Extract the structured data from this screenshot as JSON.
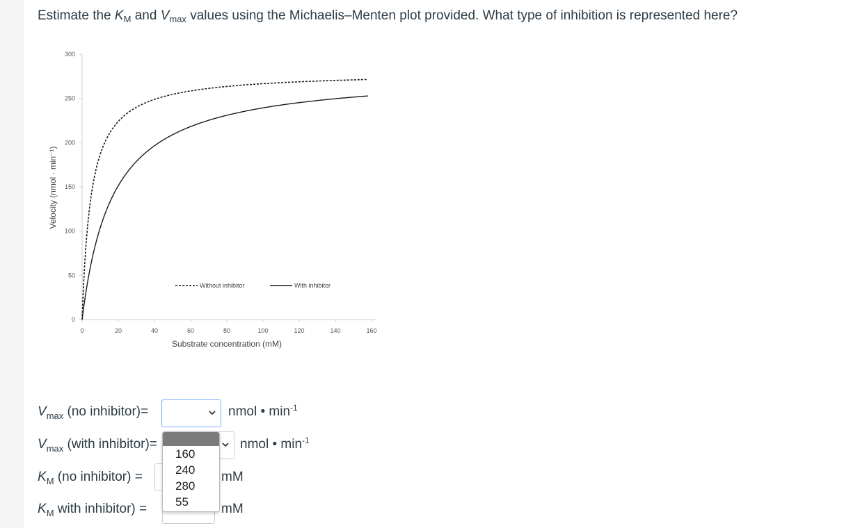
{
  "question": {
    "part1": "Estimate the ",
    "km_sym": "K",
    "km_sub": "M",
    "and": " and ",
    "vmax_sym": "V",
    "vmax_sub": "max",
    "part2": " values using the Michaelis–Menten plot provided. What type of inhibition is represented here?"
  },
  "chart_data": {
    "type": "line",
    "xlabel": "Substrate concentration (mM)",
    "ylabel": "Velocity (nmol · min⁻¹)",
    "xlim": [
      0,
      160
    ],
    "ylim": [
      0,
      300
    ],
    "x_ticks": [
      "0",
      "20",
      "40",
      "60",
      "80",
      "100",
      "120",
      "140",
      "160"
    ],
    "y_ticks": [
      "0",
      "50",
      "100",
      "150",
      "200",
      "250",
      "300"
    ],
    "legend_placement": "bottom-right inside",
    "series": [
      {
        "name": "Without inhibitor",
        "style": "dashed",
        "vmax": 280,
        "km": 5,
        "x": [
          0,
          2,
          5,
          10,
          20,
          40,
          60,
          80,
          100,
          120,
          140,
          158
        ],
        "y": [
          0,
          80,
          140,
          187,
          224,
          249,
          258,
          263,
          267,
          269,
          271,
          272
        ]
      },
      {
        "name": "With inhibitor",
        "style": "solid",
        "vmax": 280,
        "km": 17,
        "x": [
          0,
          5,
          10,
          20,
          40,
          60,
          80,
          100,
          120,
          140,
          158
        ],
        "y": [
          0,
          64,
          104,
          151,
          197,
          218,
          231,
          239,
          245,
          250,
          253
        ]
      }
    ]
  },
  "answers": [
    {
      "label_sym": "V",
      "label_sub": "max",
      "label_rest": " (no inhibitor)=",
      "unit_main": "nmol • min",
      "unit_sup": "-1"
    },
    {
      "label_sym": "V",
      "label_sub": "max",
      "label_rest": " (with inhibitor)=",
      "unit_main": "nmol • min",
      "unit_sup": "-1"
    },
    {
      "label_sym": "K",
      "label_sub": "M",
      "label_rest": " (no inhibitor) =",
      "unit_main": "mM",
      "unit_sup": ""
    },
    {
      "label_sym": "K",
      "label_sub": "M",
      "label_rest": " with inhibitor) =",
      "unit_main": "mM",
      "unit_sup": ""
    }
  ],
  "dropdown_options": [
    "160",
    "240",
    "280",
    "55"
  ],
  "colors": {
    "text": "#2d3b45",
    "focus": "#74a9ff",
    "curve": "#1a1a1a"
  }
}
